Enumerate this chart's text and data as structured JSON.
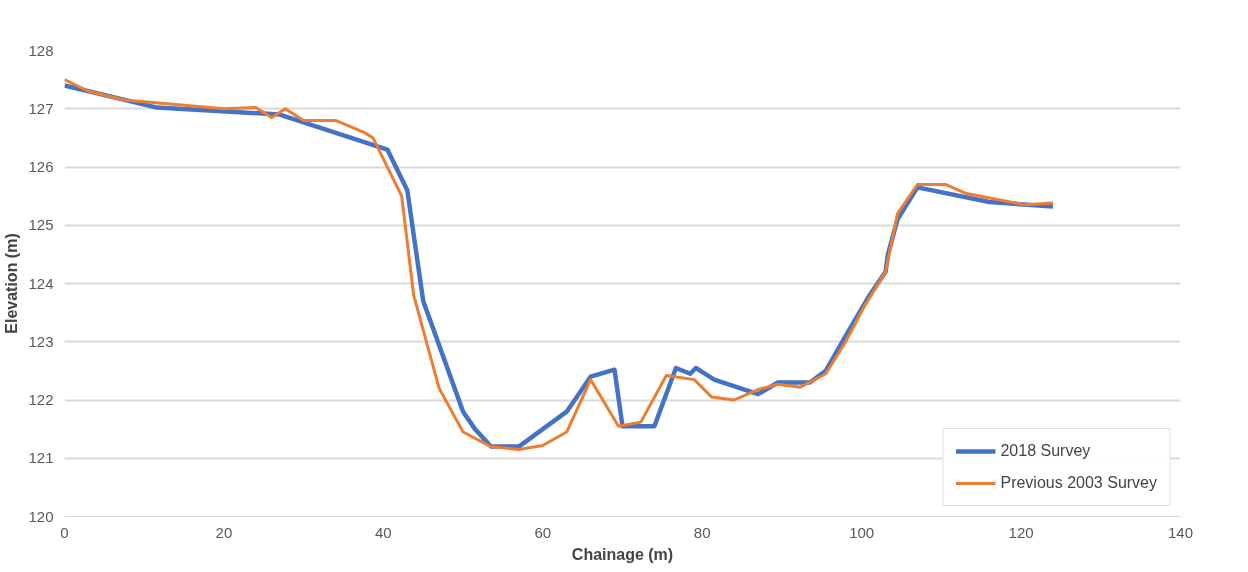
{
  "chart_data": {
    "type": "line",
    "xlabel": "Chainage (m)",
    "ylabel": "Elevation (m)",
    "xlim": [
      0,
      140
    ],
    "xticks": [
      0,
      20,
      40,
      60,
      80,
      100,
      120,
      140
    ],
    "ylim": [
      120,
      128
    ],
    "yticks": [
      120,
      121,
      122,
      123,
      124,
      125,
      126,
      127,
      128
    ],
    "grid": "y",
    "legend": "bottom right",
    "marker": "none",
    "line_style": "solid",
    "series": [
      {
        "name": "2018 Survey",
        "color": "#4472c4",
        "x": [
          0,
          11.6,
          27,
          40.5,
          43,
          45,
          50,
          51.5,
          53.5,
          57,
          63,
          66,
          69,
          70,
          74,
          76.7,
          78.5,
          79.2,
          81.5,
          87,
          89.5,
          93.5,
          95.5,
          98,
          101,
          103,
          103.3,
          104.5,
          107,
          116,
          124
        ],
        "values": [
          127.4,
          127.02,
          126.9,
          126.3,
          125.6,
          123.7,
          121.8,
          121.5,
          121.2,
          121.2,
          121.8,
          122.4,
          122.52,
          121.55,
          121.55,
          122.55,
          122.45,
          122.55,
          122.35,
          122.1,
          122.3,
          122.3,
          122.5,
          123.1,
          123.8,
          124.2,
          124.5,
          125.1,
          125.65,
          125.4,
          125.32
        ]
      },
      {
        "name": "Previous 2003 Survey",
        "color": "#ed7d31",
        "x": [
          0,
          3,
          7.5,
          20,
          24,
          26,
          27.7,
          30,
          34,
          37.5,
          38.7,
          42.3,
          43.8,
          47,
          50,
          53.5,
          57,
          60,
          63,
          66,
          69.5,
          72.3,
          75.5,
          79,
          81.2,
          84,
          87,
          89.5,
          92.3,
          95.5,
          98,
          100.3,
          103,
          104.5,
          107,
          110.5,
          113,
          120.5,
          124
        ],
        "values": [
          127.5,
          127.3,
          127.15,
          127.0,
          127.02,
          126.85,
          127.0,
          126.8,
          126.8,
          126.6,
          126.5,
          125.5,
          123.8,
          122.2,
          121.45,
          121.2,
          121.15,
          121.22,
          121.45,
          122.35,
          121.55,
          121.62,
          122.42,
          122.35,
          122.05,
          122.0,
          122.18,
          122.27,
          122.22,
          122.45,
          123.0,
          123.6,
          124.2,
          125.2,
          125.7,
          125.7,
          125.55,
          125.35,
          125.38
        ]
      }
    ]
  }
}
